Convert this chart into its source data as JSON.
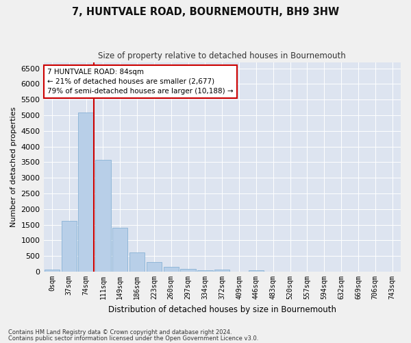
{
  "title": "7, HUNTVALE ROAD, BOURNEMOUTH, BH9 3HW",
  "subtitle": "Size of property relative to detached houses in Bournemouth",
  "xlabel": "Distribution of detached houses by size in Bournemouth",
  "ylabel": "Number of detached properties",
  "bar_color": "#b8cfe8",
  "bar_edge_color": "#7aaad0",
  "background_color": "#dde4f0",
  "grid_color": "#ffffff",
  "annotation_box_color": "#ffffff",
  "annotation_box_edge": "#cc0000",
  "vline_color": "#cc0000",
  "vline_x_index": 2,
  "categories": [
    "0sqm",
    "37sqm",
    "74sqm",
    "111sqm",
    "149sqm",
    "186sqm",
    "223sqm",
    "260sqm",
    "297sqm",
    "334sqm",
    "372sqm",
    "409sqm",
    "446sqm",
    "483sqm",
    "520sqm",
    "557sqm",
    "594sqm",
    "632sqm",
    "669sqm",
    "706sqm",
    "743sqm"
  ],
  "values": [
    75,
    1630,
    5080,
    3580,
    1410,
    610,
    305,
    150,
    80,
    55,
    60,
    10,
    50,
    5,
    0,
    0,
    0,
    0,
    0,
    0,
    0
  ],
  "ylim": [
    0,
    6700
  ],
  "yticks": [
    0,
    500,
    1000,
    1500,
    2000,
    2500,
    3000,
    3500,
    4000,
    4500,
    5000,
    5500,
    6000,
    6500
  ],
  "annotation_text": "7 HUNTVALE ROAD: 84sqm\n← 21% of detached houses are smaller (2,677)\n79% of semi-detached houses are larger (10,188) →",
  "footnote1": "Contains HM Land Registry data © Crown copyright and database right 2024.",
  "footnote2": "Contains public sector information licensed under the Open Government Licence v3.0."
}
